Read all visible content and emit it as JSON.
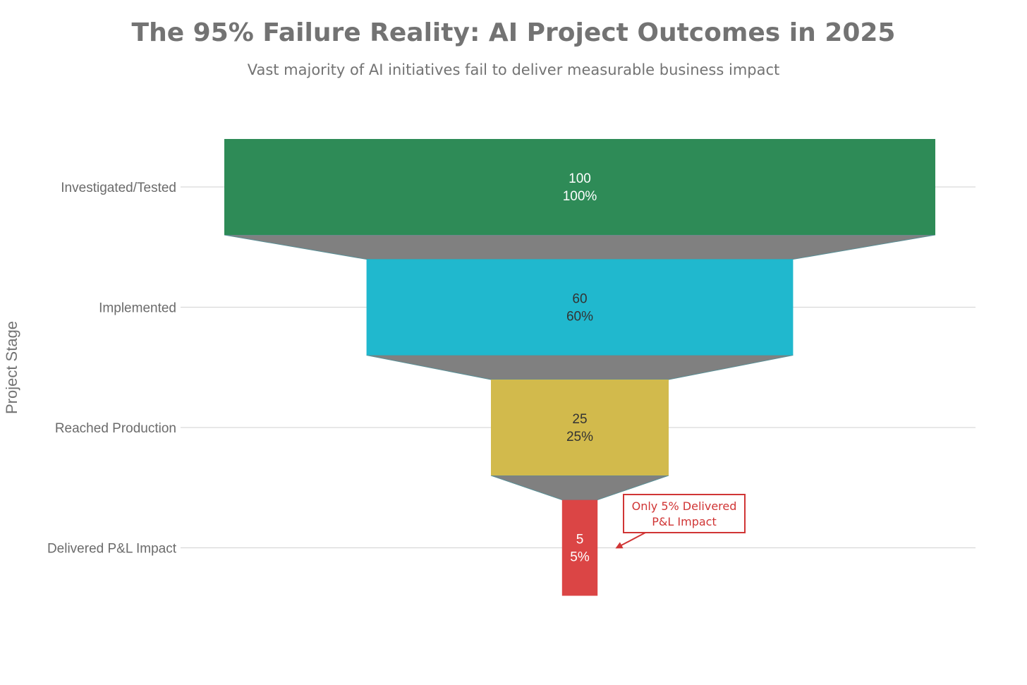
{
  "chart_data": {
    "type": "funnel",
    "title": "The 95% Failure Reality: AI Project Outcomes in 2025",
    "subtitle": "Vast majority of AI initiatives fail to deliver measurable business impact",
    "ylabel": "Project Stage",
    "stages": [
      {
        "label": "Investigated/Tested",
        "value": 100,
        "percent_label": "100%",
        "color": "#2e8b57",
        "text_color": "#ffffff"
      },
      {
        "label": "Implemented",
        "value": 60,
        "percent_label": "60%",
        "color": "#20b8ce",
        "text_color": "#333333"
      },
      {
        "label": "Reached Production",
        "value": 25,
        "percent_label": "25%",
        "color": "#d2ba4c",
        "text_color": "#333333"
      },
      {
        "label": "Delivered P&L Impact",
        "value": 5,
        "percent_label": "5%",
        "color": "#db4545",
        "text_color": "#ffffff"
      }
    ],
    "connector_color": "#808080",
    "grid": true,
    "annotation": {
      "lines": [
        "Only 5% Delivered",
        "P&L Impact"
      ],
      "stage_index": 3,
      "color": "#d03535"
    }
  }
}
